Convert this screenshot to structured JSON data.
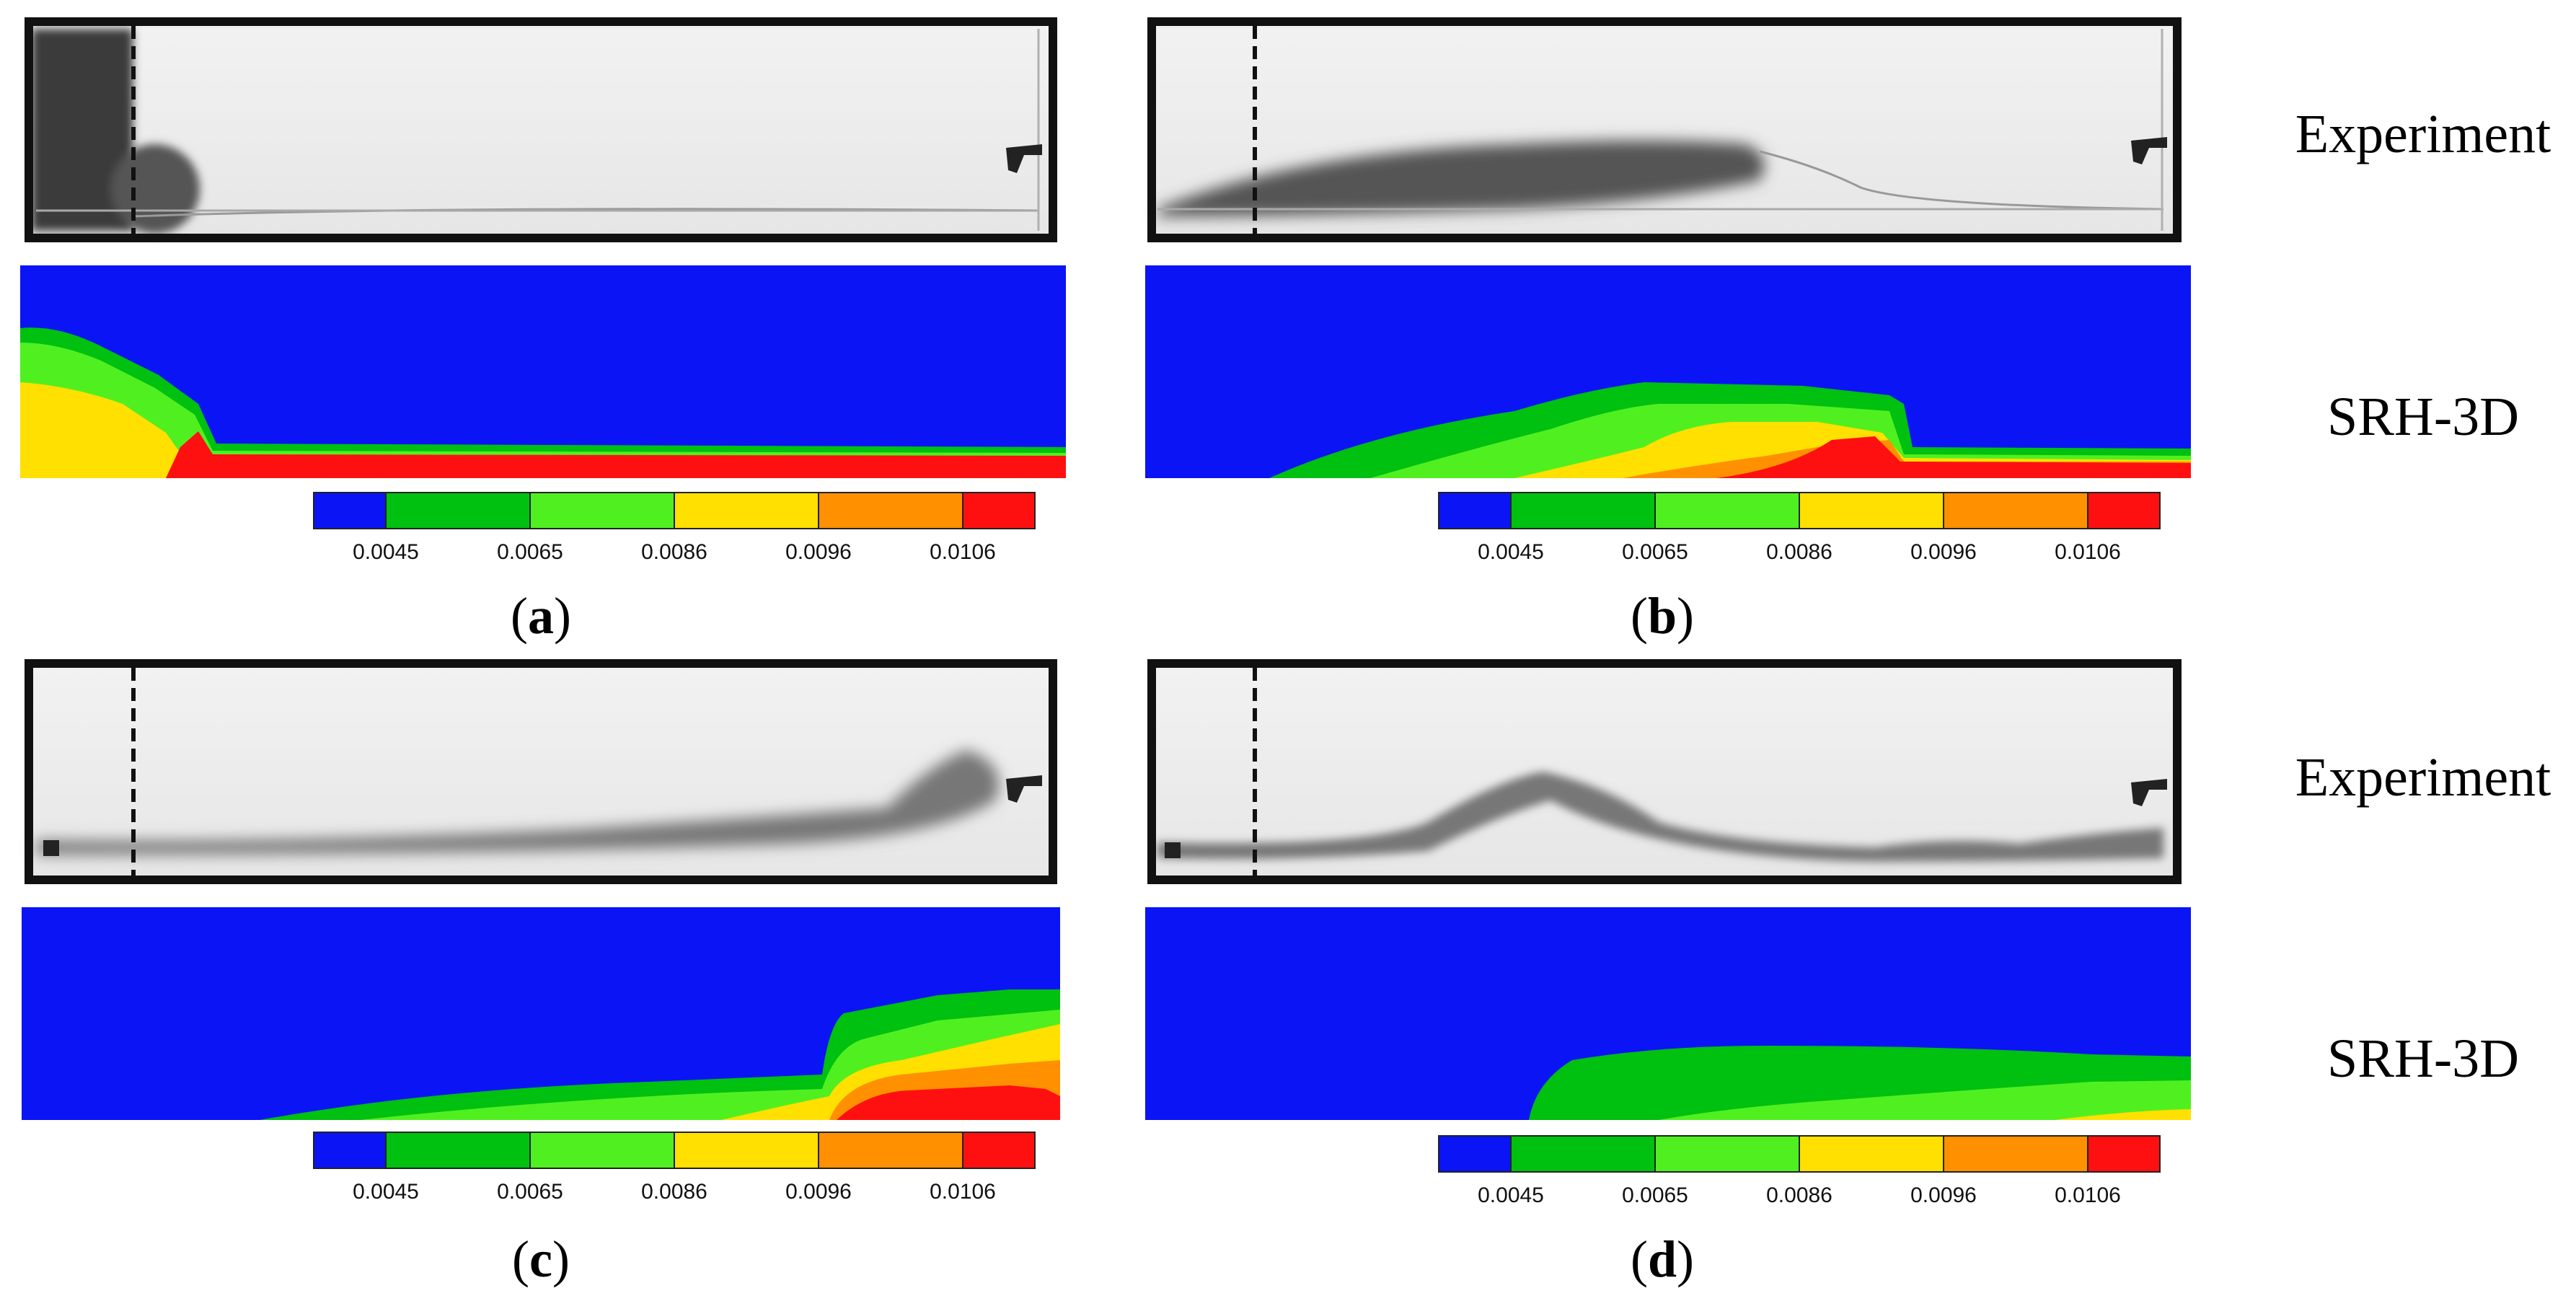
{
  "row_labels": {
    "experiment_top": "Experiment",
    "model_top": "SRH-3D",
    "experiment_bottom": "Experiment",
    "model_bottom": "SRH-3D"
  },
  "panels": [
    {
      "letter": "a"
    },
    {
      "letter": "b"
    },
    {
      "letter": "c"
    },
    {
      "letter": "d"
    }
  ],
  "colorbar": {
    "ticks": [
      "0.0045",
      "0.0065",
      "0.0086",
      "0.0096",
      "0.0106"
    ],
    "colors": [
      "#0a14f5",
      "#00c010",
      "#50f020",
      "#ffe000",
      "#ff9000",
      "#ff1010"
    ]
  },
  "colors": {
    "background_fluid": "#0a14f5",
    "band_dark_green": "#00c010",
    "band_light_green": "#50f020",
    "band_yellow": "#ffe000",
    "band_orange": "#ff9000",
    "band_red": "#ff1010"
  }
}
